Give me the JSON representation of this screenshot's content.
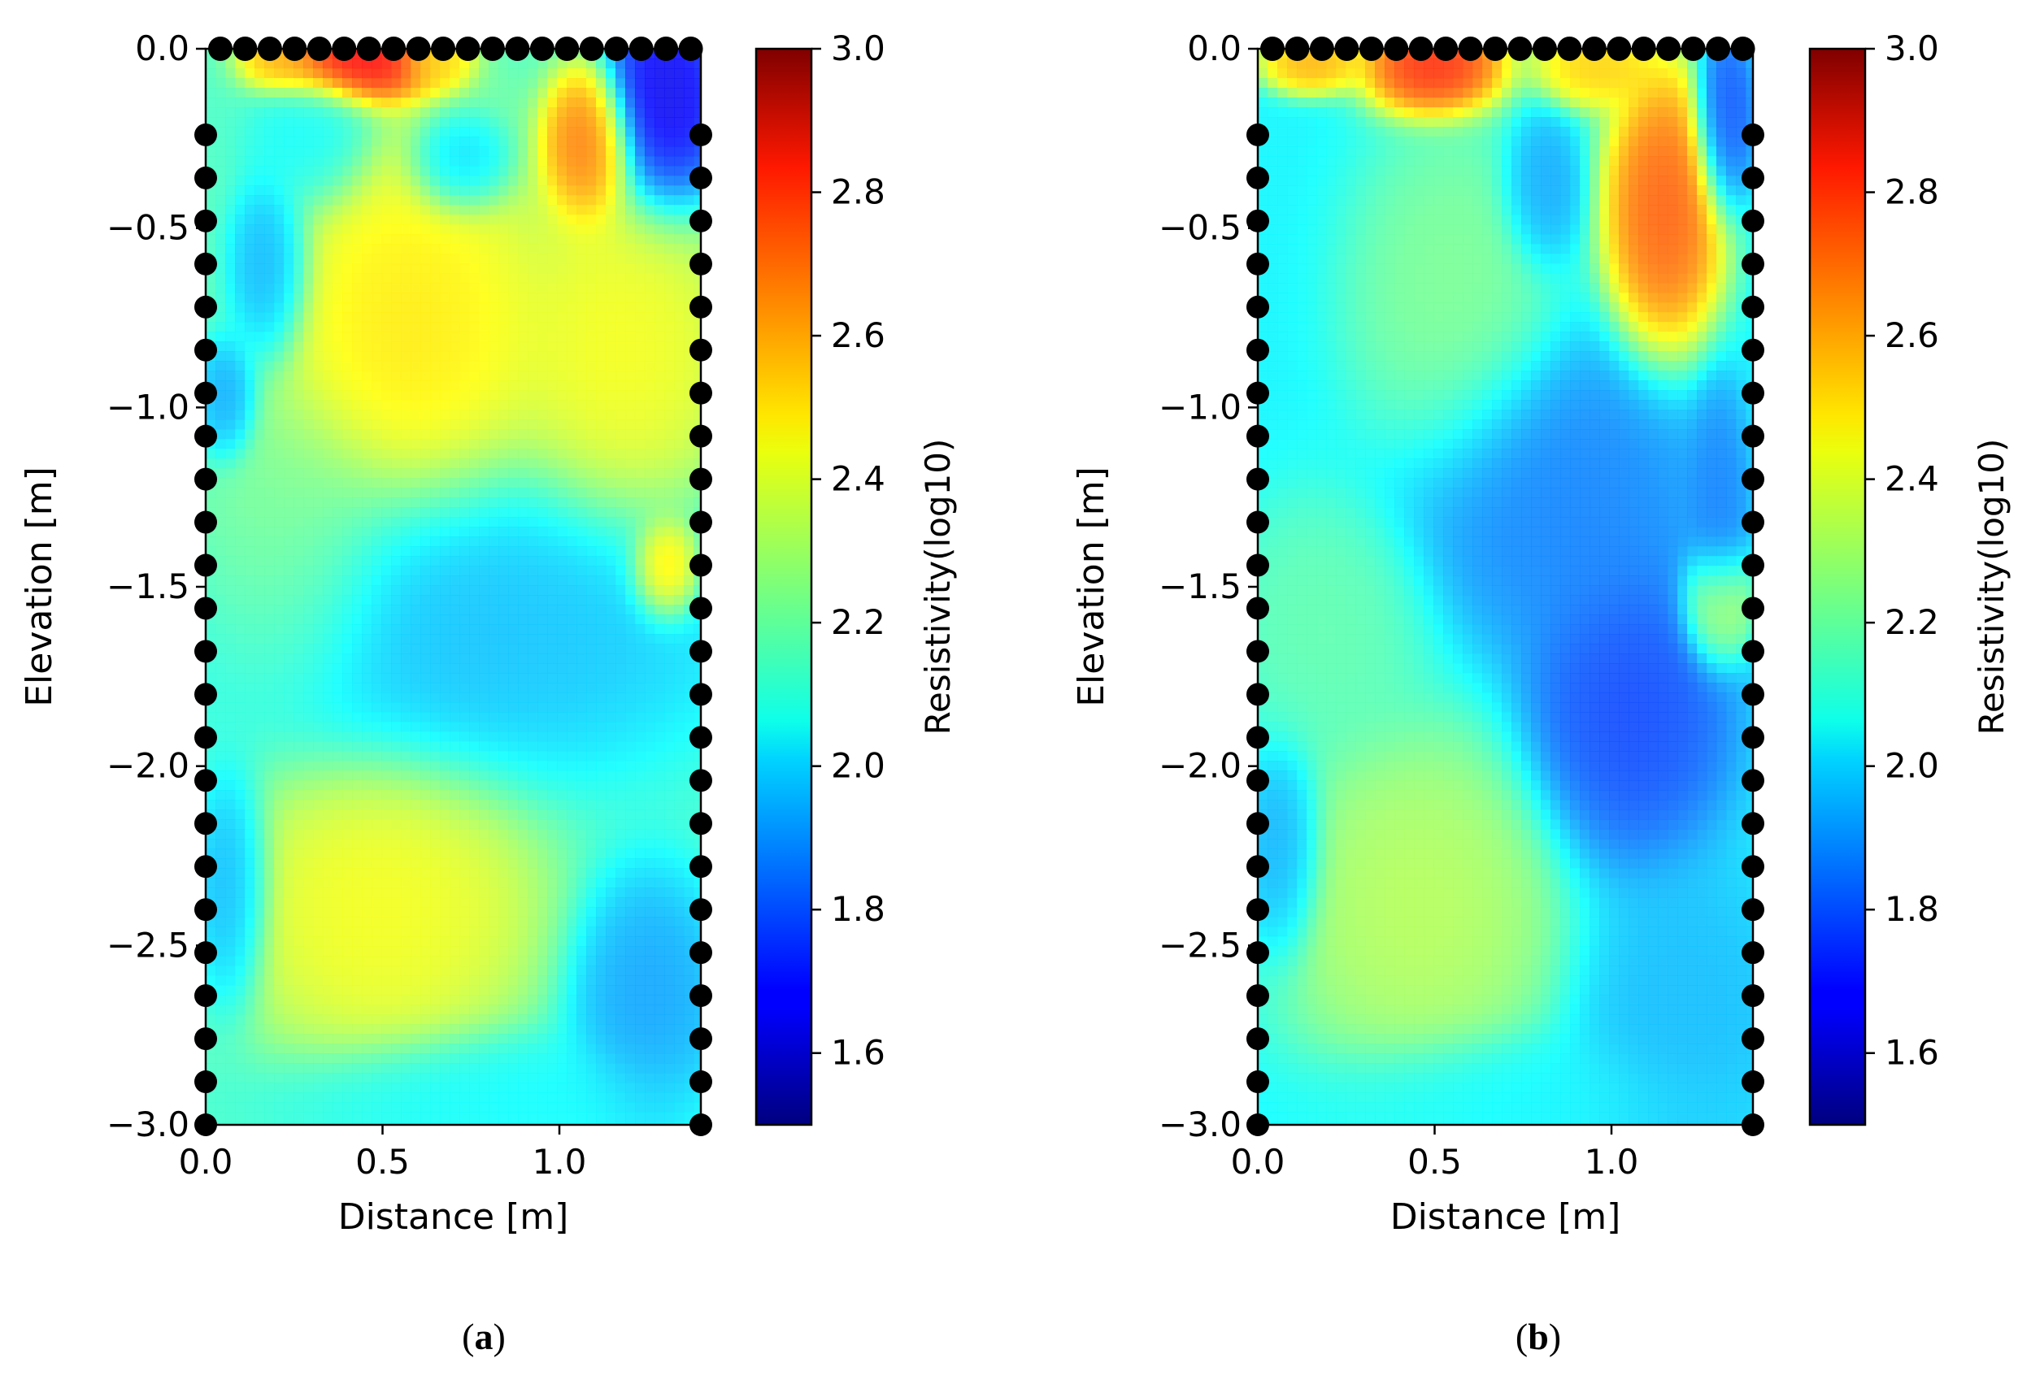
{
  "chart_data": [
    {
      "type": "heatmap",
      "panel_label": "a",
      "xlabel": "Distance [m]",
      "ylabel": "Elevation [m]",
      "xlim": [
        0.0,
        1.4
      ],
      "ylim": [
        -3.0,
        0.0
      ],
      "xticks": [
        "0.0",
        "0.5",
        "1.0"
      ],
      "yticks": [
        "0.0",
        "−0.5",
        "−1.0",
        "−1.5",
        "−2.0",
        "−2.5",
        "−3.0"
      ],
      "colorbar": {
        "label": "Resistivity(log10)",
        "range": [
          1.5,
          3.0
        ],
        "ticks": [
          "1.6",
          "1.8",
          "2.0",
          "2.2",
          "2.4",
          "2.6",
          "2.8",
          "3.0"
        ],
        "colormap": "jet"
      },
      "electrodes": {
        "top_x": [
          0.0,
          0.07,
          0.14,
          0.21,
          0.28,
          0.35,
          0.42,
          0.49,
          0.56,
          0.63,
          0.7,
          0.77,
          0.84,
          0.91,
          0.98,
          1.05,
          1.12,
          1.19,
          1.26,
          1.33
        ],
        "side_y": [
          -0.24,
          -0.36,
          -0.48,
          -0.6,
          -0.72,
          -0.84,
          -0.96,
          -1.08,
          -1.2,
          -1.32,
          -1.44,
          -1.56,
          -1.68,
          -1.8,
          -1.92,
          -2.04,
          -2.16,
          -2.28,
          -2.4,
          -2.52,
          -2.64,
          -2.76,
          -2.88,
          -3.0
        ]
      },
      "background_value": 2.15,
      "anomalies": [
        {
          "x": 0.42,
          "y": -0.03,
          "value": 2.9,
          "rx": 0.17,
          "ry": 0.09
        },
        {
          "x": 0.22,
          "y": -0.03,
          "value": 2.55,
          "rx": 0.08,
          "ry": 0.06
        },
        {
          "x": 0.65,
          "y": -0.03,
          "value": 2.5,
          "rx": 0.07,
          "ry": 0.06
        },
        {
          "x": 1.3,
          "y": -0.15,
          "value": 1.6,
          "rx": 0.12,
          "ry": 0.22
        },
        {
          "x": 1.08,
          "y": -0.27,
          "value": 2.7,
          "rx": 0.09,
          "ry": 0.15
        },
        {
          "x": 0.72,
          "y": -0.32,
          "value": 1.95,
          "rx": 0.1,
          "ry": 0.1
        },
        {
          "x": 0.3,
          "y": -0.25,
          "value": 2.05,
          "rx": 0.12,
          "ry": 0.14
        },
        {
          "x": 0.58,
          "y": -0.78,
          "value": 2.5,
          "rx": 0.27,
          "ry": 0.38
        },
        {
          "x": 0.18,
          "y": -0.62,
          "value": 1.9,
          "rx": 0.08,
          "ry": 0.18
        },
        {
          "x": 0.06,
          "y": -0.98,
          "value": 1.9,
          "rx": 0.06,
          "ry": 0.12
        },
        {
          "x": 1.18,
          "y": -0.85,
          "value": 2.45,
          "rx": 0.22,
          "ry": 0.35
        },
        {
          "x": 1.3,
          "y": -1.45,
          "value": 2.6,
          "rx": 0.07,
          "ry": 0.1
        },
        {
          "x": 0.78,
          "y": -1.6,
          "value": 1.95,
          "rx": 0.5,
          "ry": 0.3
        },
        {
          "x": 0.25,
          "y": -1.4,
          "value": 2.25,
          "rx": 0.2,
          "ry": 0.3
        },
        {
          "x": 0.5,
          "y": -2.4,
          "value": 2.45,
          "rx": 0.3,
          "ry": 0.3
        },
        {
          "x": 0.07,
          "y": -2.35,
          "value": 1.9,
          "rx": 0.08,
          "ry": 0.22
        },
        {
          "x": 1.25,
          "y": -2.65,
          "value": 1.9,
          "rx": 0.15,
          "ry": 0.25
        },
        {
          "x": 0.8,
          "y": -2.92,
          "value": 2.05,
          "rx": 0.4,
          "ry": 0.12
        }
      ]
    },
    {
      "type": "heatmap",
      "panel_label": "b",
      "xlabel": "Distance [m]",
      "ylabel": "Elevation [m]",
      "xlim": [
        0.0,
        1.4
      ],
      "ylim": [
        -3.0,
        0.0
      ],
      "xticks": [
        "0.0",
        "0.5",
        "1.0"
      ],
      "yticks": [
        "0.0",
        "−0.5",
        "−1.0",
        "−1.5",
        "−2.0",
        "−2.5",
        "−3.0"
      ],
      "colorbar": {
        "label": "Resistivity(log10)",
        "range": [
          1.5,
          3.0
        ],
        "ticks": [
          "1.6",
          "1.8",
          "2.0",
          "2.2",
          "2.4",
          "2.6",
          "2.8",
          "3.0"
        ],
        "colormap": "jet"
      },
      "electrodes": {
        "top_x": [
          0.0,
          0.07,
          0.14,
          0.21,
          0.28,
          0.35,
          0.42,
          0.49,
          0.56,
          0.63,
          0.7,
          0.77,
          0.84,
          0.91,
          0.98,
          1.05,
          1.12,
          1.19,
          1.26,
          1.33
        ],
        "side_y": [
          -0.24,
          -0.36,
          -0.48,
          -0.6,
          -0.72,
          -0.84,
          -0.96,
          -1.08,
          -1.2,
          -1.32,
          -1.44,
          -1.56,
          -1.68,
          -1.8,
          -1.92,
          -2.04,
          -2.16,
          -2.28,
          -2.4,
          -2.52,
          -2.64,
          -2.76,
          -2.88,
          -3.0
        ]
      },
      "background_value": 2.05,
      "anomalies": [
        {
          "x": 0.5,
          "y": -0.05,
          "value": 2.85,
          "rx": 0.14,
          "ry": 0.1
        },
        {
          "x": 0.15,
          "y": -0.04,
          "value": 2.6,
          "rx": 0.1,
          "ry": 0.06
        },
        {
          "x": 0.95,
          "y": -0.05,
          "value": 2.55,
          "rx": 0.12,
          "ry": 0.08
        },
        {
          "x": 1.15,
          "y": -0.45,
          "value": 2.75,
          "rx": 0.12,
          "ry": 0.28
        },
        {
          "x": 1.32,
          "y": -0.2,
          "value": 1.75,
          "rx": 0.06,
          "ry": 0.18
        },
        {
          "x": 0.8,
          "y": -0.4,
          "value": 1.9,
          "rx": 0.08,
          "ry": 0.15
        },
        {
          "x": 0.55,
          "y": -0.7,
          "value": 2.25,
          "rx": 0.2,
          "ry": 0.35
        },
        {
          "x": 0.85,
          "y": -1.25,
          "value": 1.85,
          "rx": 0.3,
          "ry": 0.3
        },
        {
          "x": 1.05,
          "y": -1.85,
          "value": 1.75,
          "rx": 0.2,
          "ry": 0.3
        },
        {
          "x": 1.3,
          "y": -1.3,
          "value": 1.85,
          "rx": 0.06,
          "ry": 0.25
        },
        {
          "x": 1.3,
          "y": -1.55,
          "value": 2.45,
          "rx": 0.07,
          "ry": 0.12
        },
        {
          "x": 0.2,
          "y": -1.6,
          "value": 2.2,
          "rx": 0.2,
          "ry": 0.25
        },
        {
          "x": 0.45,
          "y": -2.4,
          "value": 2.35,
          "rx": 0.28,
          "ry": 0.35
        },
        {
          "x": 0.07,
          "y": -2.25,
          "value": 1.9,
          "rx": 0.08,
          "ry": 0.2
        },
        {
          "x": 1.2,
          "y": -2.7,
          "value": 1.95,
          "rx": 0.2,
          "ry": 0.3
        },
        {
          "x": 0.7,
          "y": -2.92,
          "value": 2.05,
          "rx": 0.4,
          "ry": 0.12
        }
      ]
    }
  ]
}
